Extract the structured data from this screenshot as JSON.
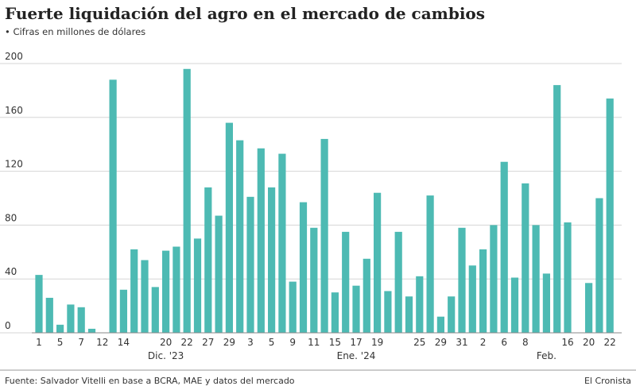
{
  "chart_data": {
    "type": "bar",
    "title": "Fuerte liquidación del agro en el mercado de cambios",
    "subtitle": "• Cifras en millones de dólares",
    "source": "Fuente: Salvador Vitelli en base a BCRA, MAE y datos del mercado",
    "brand": "El Cronista",
    "categories": [
      "1",
      null,
      "5",
      null,
      "7",
      null,
      "12",
      null,
      "14",
      null,
      null,
      null,
      "20",
      null,
      "22",
      null,
      "27",
      null,
      "29",
      null,
      "3",
      null,
      "5",
      null,
      "9",
      null,
      "11",
      null,
      "15",
      null,
      "17",
      null,
      "19",
      null,
      null,
      null,
      "25",
      null,
      "29",
      null,
      "31",
      null,
      "2",
      null,
      "6",
      null,
      "8",
      null,
      null,
      null,
      "16",
      null,
      "20",
      null,
      "22"
    ],
    "groups": [
      "Dic. '23",
      "Ene. '24",
      "Feb."
    ],
    "values": [
      43,
      26,
      6,
      21,
      19,
      3,
      null,
      188,
      32,
      62,
      54,
      34,
      61,
      64,
      196,
      70,
      108,
      87,
      156,
      143,
      101,
      137,
      108,
      133,
      38,
      97,
      78,
      144,
      30,
      75,
      35,
      55,
      104,
      31,
      75,
      27,
      42,
      102,
      12,
      27,
      78,
      50,
      62,
      80,
      127,
      41,
      111,
      80,
      44,
      184,
      82,
      null,
      37,
      100,
      174
    ],
    "color": "#4dbab3",
    "ylim": [
      0,
      200
    ],
    "yticks": [
      0,
      40,
      80,
      120,
      160,
      200
    ],
    "grid": true
  }
}
